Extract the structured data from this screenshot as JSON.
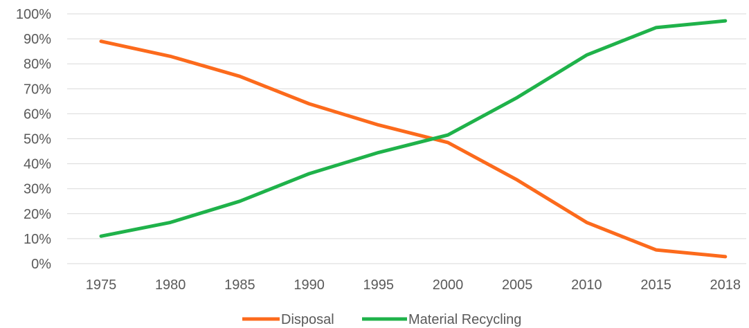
{
  "chart_data": {
    "type": "line",
    "title": "",
    "xlabel": "",
    "ylabel": "",
    "categories": [
      "1975",
      "1980",
      "1985",
      "1990",
      "1995",
      "2000",
      "2005",
      "2010",
      "2015",
      "2018"
    ],
    "y_tick_labels": [
      "0%",
      "10%",
      "20%",
      "30%",
      "40%",
      "50%",
      "60%",
      "70%",
      "80%",
      "90%",
      "100%"
    ],
    "ylim": [
      0,
      100
    ],
    "y_unit": "%",
    "grid": "horizontal",
    "legend_position": "bottom",
    "series": [
      {
        "name": "Disposal",
        "color": "#fc6a1c",
        "values": [
          89,
          83,
          75,
          64,
          55.5,
          48.5,
          33.5,
          16.5,
          5.5,
          2.8
        ]
      },
      {
        "name": "Material Recycling",
        "color": "#1fb24a",
        "values": [
          11,
          16.5,
          25,
          36,
          44.5,
          51.5,
          66.5,
          83.5,
          94.5,
          97.2
        ]
      }
    ]
  }
}
